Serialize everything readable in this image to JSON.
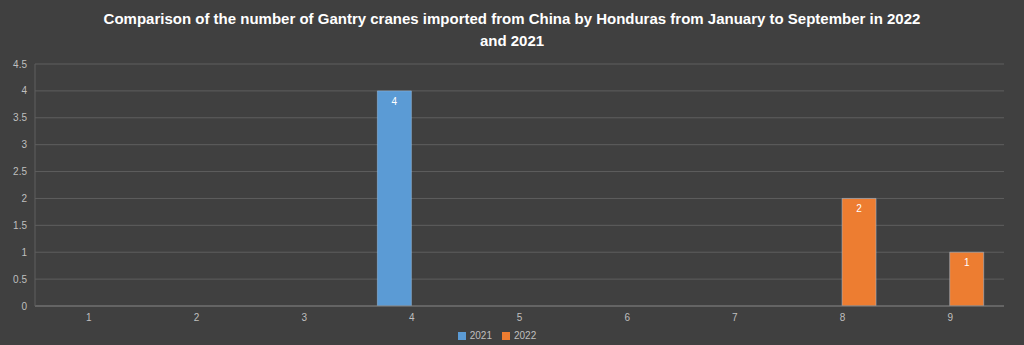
{
  "chart_data": {
    "type": "bar",
    "title": "Comparison of the number of Gantry cranes imported from China by Honduras from January to September in 2022 and 2021",
    "categories": [
      "1",
      "2",
      "3",
      "4",
      "5",
      "6",
      "7",
      "8",
      "9"
    ],
    "series": [
      {
        "name": "2021",
        "color": "#5b9bd5",
        "values": [
          null,
          null,
          null,
          4,
          null,
          null,
          null,
          null,
          null
        ]
      },
      {
        "name": "2022",
        "color": "#ed7d31",
        "values": [
          null,
          null,
          null,
          null,
          null,
          null,
          null,
          2,
          1
        ]
      }
    ],
    "ylim": [
      0,
      4.5
    ],
    "yticks": [
      0,
      0.5,
      1,
      1.5,
      2,
      2.5,
      3,
      3.5,
      4,
      4.5
    ],
    "grid": true,
    "legend": "bottom",
    "data_labels": true
  }
}
